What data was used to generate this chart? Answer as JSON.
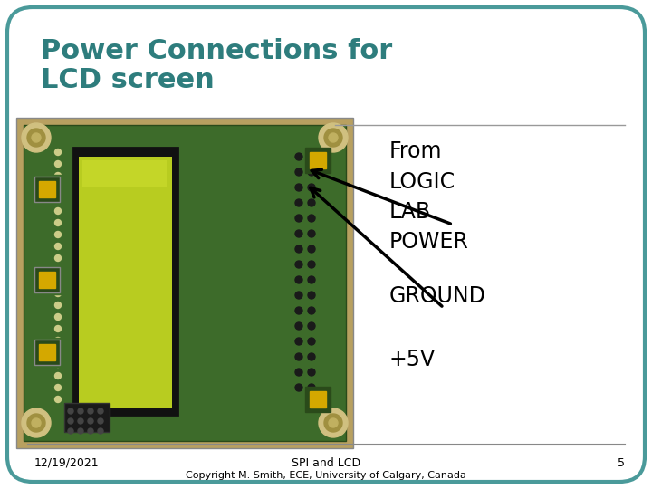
{
  "title_line1": "Power Connections for",
  "title_line2": "LCD screen",
  "title_color": "#2e7d7d",
  "title_fontsize": 22,
  "bg_color": "#ffffff",
  "border_color": "#4a9a9a",
  "border_linewidth": 3,
  "label_from": "From\nLOGIC\nLAB\nPOWER",
  "label_ground": "GROUND",
  "label_5v": "+5V",
  "label_fontsize": 17,
  "footer_date": "12/19/2021",
  "footer_center": "SPI and LCD",
  "footer_copyright": "Copyright M. Smith, ECE, University of Calgary, Canada",
  "footer_page": "5",
  "footer_fontsize": 9,
  "pcb_bg_color": "#b8a878",
  "pcb_green_color": "#3d6b2a",
  "pcb_green2_color": "#4a7c35",
  "lcd_black_color": "#1a1a1a",
  "lcd_display_color": "#c8d830",
  "led_color": "#d4a800",
  "screw_color": "#c0b060",
  "connector_color": "#222222"
}
